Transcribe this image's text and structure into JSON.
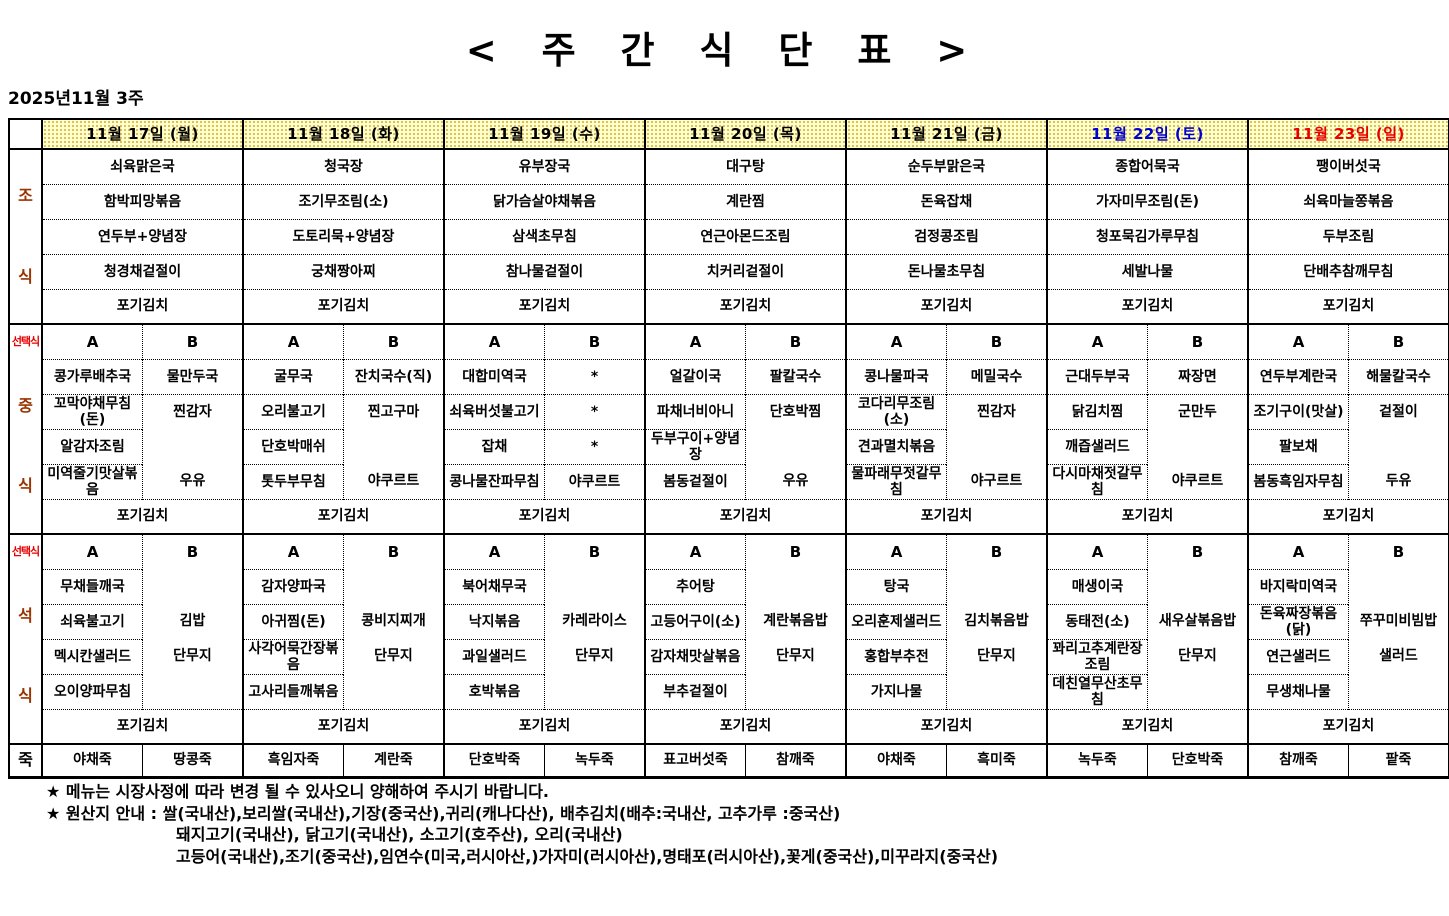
{
  "title": "< 주 간 식 단 표 >",
  "week_label": "2025년11월 3주",
  "kimchi_label": "포기김치",
  "choice_options": [
    "A",
    "B"
  ],
  "row_labels": {
    "breakfast": [
      "조",
      "식"
    ],
    "lunch": [
      "중",
      "식"
    ],
    "dinner": [
      "석",
      "식"
    ],
    "choice": "선택식",
    "porridge": "죽"
  },
  "colors": {
    "weekday_date": "#000000",
    "saturday_date": "#0000d0",
    "sunday_date": "#e80000",
    "section_label_brown": "#993300",
    "choice_label_red": "#e80000",
    "header_bg_yellow": "#ffffc8"
  },
  "days": [
    {
      "date": "11월 17일 (월)",
      "date_color": "#000000",
      "breakfast": [
        "쇠육맑은국",
        "함박피망볶음",
        "연두부+양념장",
        "청경채겉절이",
        "포기김치"
      ],
      "lunch_a": [
        "콩가루배추국",
        "꼬막야채무침(돈)",
        "알감자조림",
        "미역줄기맛살볶음"
      ],
      "lunch_b": [
        "물만두국",
        "찐감자",
        "",
        "우유"
      ],
      "dinner_a": [
        "무채들깨국",
        "쇠육불고기",
        "멕시칸샐러드",
        "오이양파무침"
      ],
      "dinner_b": [
        "김밥",
        "단무지"
      ],
      "porridge_a": "야채죽",
      "porridge_b": "땅콩죽"
    },
    {
      "date": "11월 18일 (화)",
      "date_color": "#000000",
      "breakfast": [
        "청국장",
        "조기무조림(소)",
        "도토리묵+양념장",
        "궁채짱아찌",
        "포기김치"
      ],
      "lunch_a": [
        "굴무국",
        "오리불고기",
        "단호박매쉬",
        "톳두부무침"
      ],
      "lunch_b": [
        "잔치국수(직)",
        "찐고구마",
        "",
        "야쿠르트"
      ],
      "dinner_a": [
        "감자양파국",
        "아귀찜(돈)",
        "사각어묵간장볶음",
        "고사리들깨볶음"
      ],
      "dinner_b": [
        "콩비지찌개",
        "단무지"
      ],
      "porridge_a": "흑임자죽",
      "porridge_b": "계란죽"
    },
    {
      "date": "11월 19일 (수)",
      "date_color": "#000000",
      "breakfast": [
        "유부장국",
        "닭가슴살야채볶음",
        "삼색초무침",
        "참나물겉절이",
        "포기김치"
      ],
      "lunch_a": [
        "대합미역국",
        "쇠육버섯불고기",
        "잡채",
        "콩나물잔파무침"
      ],
      "lunch_b": [
        "*",
        "*",
        "*",
        "야쿠르트"
      ],
      "dinner_a": [
        "북어채무국",
        "낙지볶음",
        "과일샐러드",
        "호박볶음"
      ],
      "dinner_b": [
        "카레라이스",
        "단무지"
      ],
      "porridge_a": "단호박죽",
      "porridge_b": "녹두죽"
    },
    {
      "date": "11월 20일 (목)",
      "date_color": "#000000",
      "breakfast": [
        "대구탕",
        "계란찜",
        "연근아몬드조림",
        "치커리겉절이",
        "포기김치"
      ],
      "lunch_a": [
        "얼갈이국",
        "파채너비아니",
        "두부구이+양념장",
        "봄동겉절이"
      ],
      "lunch_b": [
        "팔칼국수",
        "단호박찜",
        "",
        "우유"
      ],
      "dinner_a": [
        "추어탕",
        "고등어구이(소)",
        "감자채맛살볶음",
        "부추겉절이"
      ],
      "dinner_b": [
        "계란볶음밥",
        "단무지"
      ],
      "porridge_a": "표고버섯죽",
      "porridge_b": "참깨죽"
    },
    {
      "date": "11월 21일 (금)",
      "date_color": "#000000",
      "breakfast": [
        "순두부맑은국",
        "돈육잡채",
        "검정콩조림",
        "돈나물초무침",
        "포기김치"
      ],
      "lunch_a": [
        "콩나물파국",
        "코다리무조림(소)",
        "견과멸치볶음",
        "물파래무젓갈무침"
      ],
      "lunch_b": [
        "메밀국수",
        "찐감자",
        "",
        "야구르트"
      ],
      "dinner_a": [
        "탕국",
        "오리훈제샐러드",
        "홍합부추전",
        "가지나물"
      ],
      "dinner_b": [
        "김치볶음밥",
        "단무지"
      ],
      "porridge_a": "야채죽",
      "porridge_b": "흑미죽"
    },
    {
      "date": "11월 22일 (토)",
      "date_color": "#0000d0",
      "breakfast": [
        "종합어묵국",
        "가자미무조림(돈)",
        "청포묵김가루무침",
        "세발나물",
        "포기김치"
      ],
      "lunch_a": [
        "근대두부국",
        "닭김치찜",
        "깨즙샐러드",
        "다시마채젓갈무침"
      ],
      "lunch_b": [
        "짜장면",
        "군만두",
        "",
        "야쿠르트"
      ],
      "dinner_a": [
        "매생이국",
        "동태전(소)",
        "꽈리고추계란장조림",
        "데친열무산초무침"
      ],
      "dinner_b": [
        "새우살볶음밥",
        "단무지"
      ],
      "porridge_a": "녹두죽",
      "porridge_b": "단호박죽"
    },
    {
      "date": "11월 23일 (일)",
      "date_color": "#e80000",
      "breakfast": [
        "팽이버섯국",
        "쇠육마늘쫑볶음",
        "두부조림",
        "단배추참깨무침",
        "포기김치"
      ],
      "lunch_a": [
        "연두부계란국",
        "조기구이(맛살)",
        "팔보채",
        "봄동흑임자무침"
      ],
      "lunch_b": [
        "해물칼국수",
        "겉절이",
        "",
        "두유"
      ],
      "dinner_a": [
        "바지락미역국",
        "돈육짜장볶음(닭)",
        "연근샐러드",
        "무생채나물"
      ],
      "dinner_b": [
        "쭈꾸미비빔밥",
        "샐러드"
      ],
      "porridge_a": "참깨죽",
      "porridge_b": "팥죽"
    }
  ],
  "notes": [
    "★ 메뉴는 시장사정에 따라 변경 될 수 있사오니 양해하여 주시기 바랍니다.",
    "★ 원산지 안내 : 쌀(국내산),보리쌀(국내산),기장(중국산),귀리(캐나다산), 배추김치(배추:국내산, 고추가루 :중국산)",
    "돼지고기(국내산), 닭고기(국내산), 소고기(호주산), 오리(국내산)",
    "고등어(국내산),조기(중국산),임연수(미국,러시아산,)가자미(러시아산),명태포(러시아산),꽃게(중국산),미꾸라지(중국산)"
  ]
}
